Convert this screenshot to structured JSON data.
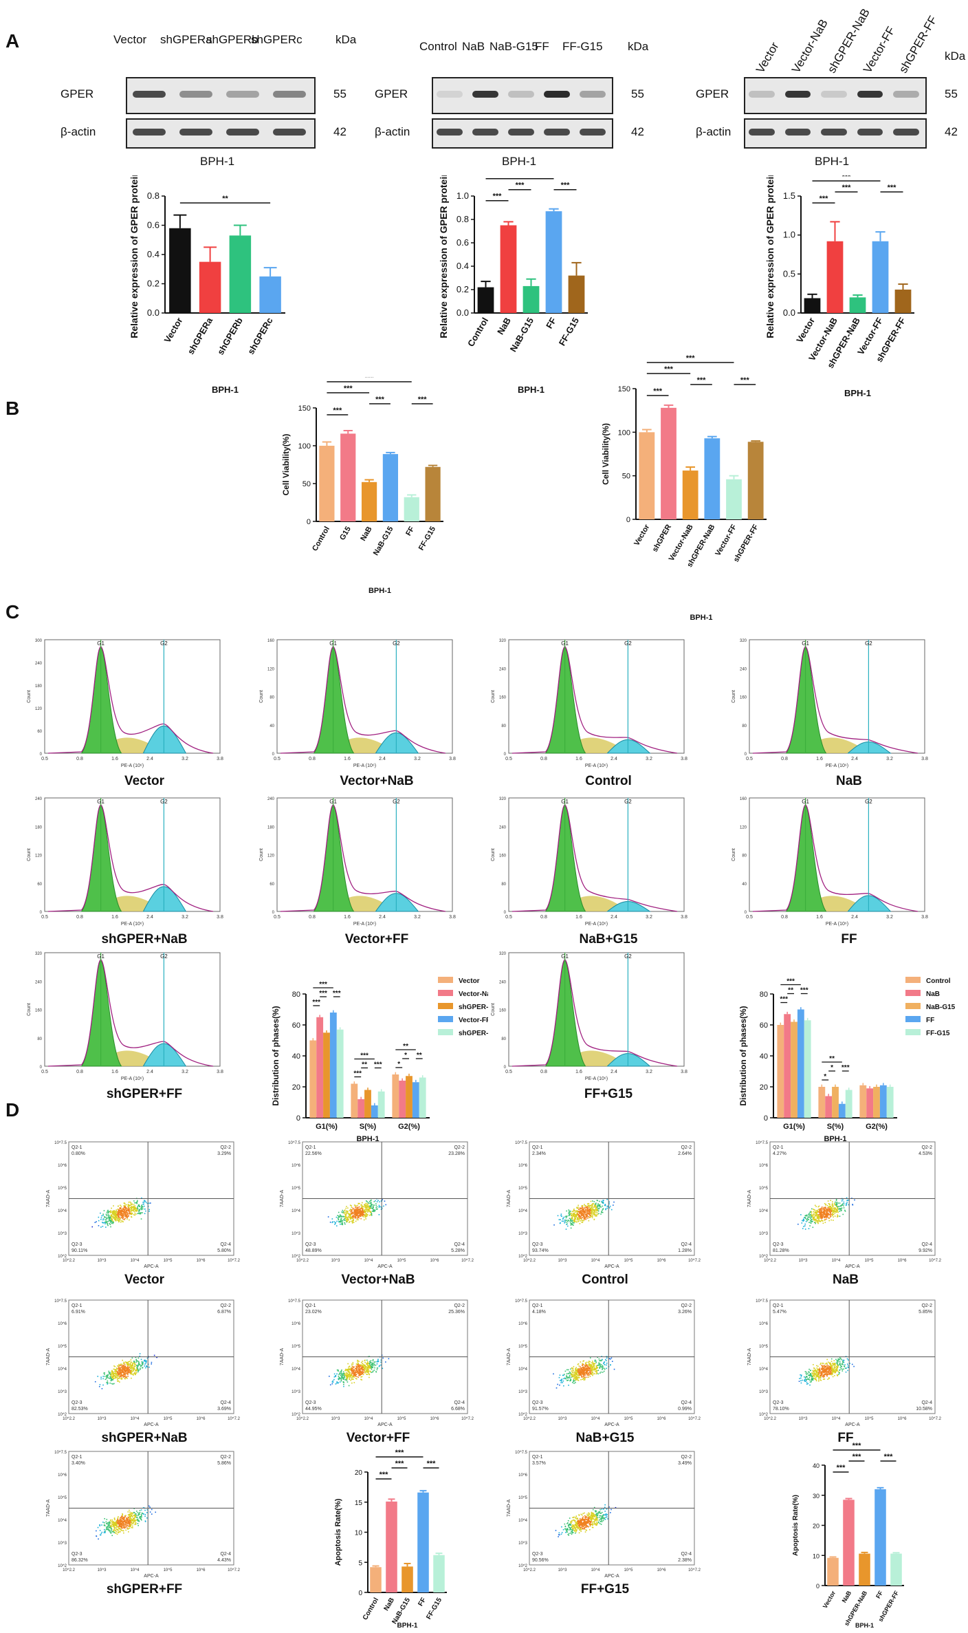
{
  "panels": {
    "A": "A",
    "B": "B",
    "C": "C",
    "D": "D"
  },
  "blots": [
    {
      "lanes": [
        "Vector",
        "shGPERa",
        "shGPERb",
        "shGPERc"
      ],
      "kda": "kDa",
      "proteins": [
        "GPER",
        "β-actin"
      ],
      "kd_values": [
        "55",
        "42"
      ],
      "cell": "BPH-1",
      "gper": [
        0.8,
        0.45,
        0.35,
        0.5
      ],
      "actin": [
        0.8,
        0.8,
        0.8,
        0.8
      ]
    },
    {
      "lanes": [
        "Control",
        "NaB",
        "NaB-G15",
        "FF",
        "FF-G15"
      ],
      "kda": "kDa",
      "proteins": [
        "GPER",
        "β-actin"
      ],
      "kd_values": [
        "55",
        "42"
      ],
      "cell": "BPH-1",
      "gper": [
        0.1,
        0.9,
        0.2,
        0.95,
        0.35
      ],
      "actin": [
        0.8,
        0.8,
        0.8,
        0.8,
        0.8
      ]
    },
    {
      "lanes": [
        "Vector",
        "Vector-NaB",
        "shGPER-NaB",
        "Vector-FF",
        "shGPER-FF"
      ],
      "kda": "kDa",
      "proteins": [
        "GPER",
        "β-actin"
      ],
      "kd_values": [
        "55",
        "42"
      ],
      "cell": "BPH-1",
      "gper": [
        0.2,
        0.9,
        0.15,
        0.9,
        0.3
      ],
      "actin": [
        0.8,
        0.8,
        0.8,
        0.8,
        0.8
      ]
    }
  ],
  "chart_data": [
    {
      "id": "A1",
      "type": "bar",
      "ylabel": "Relative expression of GPER protein",
      "xlabel": "BPH-1",
      "categories": [
        "Vector",
        "shGPERa",
        "shGPERb",
        "shGPERc"
      ],
      "values": [
        0.58,
        0.35,
        0.53,
        0.25
      ],
      "errors": [
        0.09,
        0.1,
        0.07,
        0.06
      ],
      "colors": [
        "#111111",
        "#f04040",
        "#2ec27e",
        "#5aa6f0"
      ],
      "ylim": [
        0,
        0.8
      ],
      "yticks": [
        "0.0",
        "0.2",
        "0.4",
        "0.6",
        "0.8"
      ],
      "sig": [
        {
          "from": 0,
          "to": 3,
          "level": 0,
          "label": "**"
        }
      ]
    },
    {
      "id": "A2",
      "type": "bar",
      "ylabel": "Relative expression of GPER protein",
      "xlabel": "BPH-1",
      "categories": [
        "Control",
        "NaB",
        "NaB-G15",
        "FF",
        "FF-G15"
      ],
      "values": [
        0.22,
        0.75,
        0.23,
        0.87,
        0.32
      ],
      "errors": [
        0.05,
        0.03,
        0.06,
        0.02,
        0.11
      ],
      "colors": [
        "#111111",
        "#f04040",
        "#2ec27e",
        "#5aa6f0",
        "#a0661c"
      ],
      "ylim": [
        0,
        1.0
      ],
      "yticks": [
        "0.0",
        "0.2",
        "0.4",
        "0.6",
        "0.8",
        "1.0"
      ],
      "sig": [
        {
          "from": 0,
          "to": 1,
          "level": 0,
          "label": "***"
        },
        {
          "from": 1,
          "to": 2,
          "level": 1,
          "label": "***"
        },
        {
          "from": 3,
          "to": 4,
          "level": 1,
          "label": "***"
        },
        {
          "from": 0,
          "to": 3,
          "level": 2,
          "label": "***"
        }
      ]
    },
    {
      "id": "A3",
      "type": "bar",
      "ylabel": "Relative expression of GPER protein",
      "xlabel": "BPH-1",
      "categories": [
        "Vector",
        "Vector-NaB",
        "shGPER-NaB",
        "Vector-FF",
        "shGPER-FF"
      ],
      "values": [
        0.19,
        0.92,
        0.2,
        0.92,
        0.3
      ],
      "errors": [
        0.05,
        0.25,
        0.03,
        0.12,
        0.07
      ],
      "colors": [
        "#111111",
        "#f04040",
        "#2ec27e",
        "#5aa6f0",
        "#a0661c"
      ],
      "ylim": [
        0,
        1.5
      ],
      "yticks": [
        "0.0",
        "0.5",
        "1.0",
        "1.5"
      ],
      "sig": [
        {
          "from": 0,
          "to": 1,
          "level": 0,
          "label": "***"
        },
        {
          "from": 1,
          "to": 2,
          "level": 1,
          "label": "***"
        },
        {
          "from": 3,
          "to": 4,
          "level": 1,
          "label": "***"
        },
        {
          "from": 0,
          "to": 3,
          "level": 2,
          "label": "***"
        }
      ]
    },
    {
      "id": "B1",
      "type": "bar",
      "ylabel": "Cell Viability(%)",
      "xlabel": "BPH-1",
      "categories": [
        "Control",
        "G15",
        "NaB",
        "NaB-G15",
        "FF",
        "FF-G15"
      ],
      "values": [
        100,
        116,
        52,
        89,
        32,
        72
      ],
      "errors": [
        5,
        4,
        3,
        2,
        3,
        2
      ],
      "colors": [
        "#f4b07a",
        "#f27a88",
        "#e8962c",
        "#5aa6f0",
        "#b8f0d8",
        "#b8853a"
      ],
      "ylim": [
        0,
        150
      ],
      "yticks": [
        "0",
        "50",
        "100",
        "150"
      ],
      "sig": [
        {
          "from": 0,
          "to": 1,
          "level": 0,
          "label": "***"
        },
        {
          "from": 2,
          "to": 3,
          "level": 1,
          "label": "***"
        },
        {
          "from": 4,
          "to": 5,
          "level": 1,
          "label": "***"
        },
        {
          "from": 0,
          "to": 2,
          "level": 2,
          "label": "***"
        },
        {
          "from": 0,
          "to": 4,
          "level": 3,
          "label": "***"
        }
      ]
    },
    {
      "id": "B2",
      "type": "bar",
      "ylabel": "Cell Viability(%)",
      "xlabel": "BPH-1",
      "categories": [
        "Vector",
        "shGPER",
        "Vector-NaB",
        "shGPER-NaB",
        "Vector-FF",
        "shGPER-FF"
      ],
      "values": [
        100,
        128,
        56,
        93,
        46,
        89
      ],
      "errors": [
        3,
        3,
        4,
        2,
        4,
        1
      ],
      "colors": [
        "#f4b07a",
        "#f27a88",
        "#e8962c",
        "#5aa6f0",
        "#b8f0d8",
        "#b8853a"
      ],
      "ylim": [
        0,
        150
      ],
      "yticks": [
        "0",
        "50",
        "100",
        "150"
      ],
      "sig": [
        {
          "from": 0,
          "to": 1,
          "level": 0,
          "label": "***"
        },
        {
          "from": 2,
          "to": 3,
          "level": 1,
          "label": "***"
        },
        {
          "from": 4,
          "to": 5,
          "level": 1,
          "label": "***"
        },
        {
          "from": 0,
          "to": 2,
          "level": 2,
          "label": "***"
        },
        {
          "from": 0,
          "to": 4,
          "level": 3,
          "label": "***"
        }
      ]
    },
    {
      "id": "C1",
      "type": "grouped-bar",
      "ylabel": "Distribution of phases(%)",
      "xlabel": "BPH-1",
      "groups": [
        "G1(%)",
        "S(%)",
        "G2(%)"
      ],
      "series": [
        {
          "name": "Vector",
          "color": "#f4b07a",
          "values": [
            50,
            22,
            28
          ]
        },
        {
          "name": "Vector-NaB",
          "color": "#f27a88",
          "values": [
            65,
            12,
            24
          ]
        },
        {
          "name": "shGPER-NaB",
          "color": "#e8962c",
          "values": [
            55,
            18,
            27
          ]
        },
        {
          "name": "Vector-FF",
          "color": "#5aa6f0",
          "values": [
            68,
            8,
            23
          ]
        },
        {
          "name": "shGPER-FF",
          "color": "#b8f0d8",
          "values": [
            57,
            17,
            26
          ]
        }
      ],
      "ylim": [
        0,
        80
      ],
      "yticks": [
        "0",
        "20",
        "40",
        "60",
        "80"
      ],
      "sig": [
        {
          "group": 0,
          "from": 0,
          "to": 1,
          "level": 0,
          "label": "***"
        },
        {
          "group": 0,
          "from": 1,
          "to": 2,
          "level": 1,
          "label": "***"
        },
        {
          "group": 0,
          "from": 3,
          "to": 4,
          "level": 1,
          "label": "***"
        },
        {
          "group": 0,
          "from": 0,
          "to": 3,
          "level": 2,
          "label": "***"
        },
        {
          "group": 1,
          "from": 0,
          "to": 1,
          "level": 0,
          "label": "***"
        },
        {
          "group": 1,
          "from": 1,
          "to": 2,
          "level": 1,
          "label": "**"
        },
        {
          "group": 1,
          "from": 3,
          "to": 4,
          "level": 1,
          "label": "***"
        },
        {
          "group": 1,
          "from": 0,
          "to": 3,
          "level": 2,
          "label": "***"
        },
        {
          "group": 2,
          "from": 0,
          "to": 1,
          "level": 0,
          "label": "*"
        },
        {
          "group": 2,
          "from": 1,
          "to": 2,
          "level": 1,
          "label": "*"
        },
        {
          "group": 2,
          "from": 3,
          "to": 4,
          "level": 1,
          "label": "**"
        },
        {
          "group": 2,
          "from": 0,
          "to": 3,
          "level": 2,
          "label": "**"
        }
      ]
    },
    {
      "id": "C2",
      "type": "grouped-bar",
      "ylabel": "Distribution of phases(%)",
      "xlabel": "BPH-1",
      "groups": [
        "G1(%)",
        "S(%)",
        "G2(%)"
      ],
      "series": [
        {
          "name": "Control",
          "color": "#f4b07a",
          "values": [
            60,
            20,
            21
          ]
        },
        {
          "name": "NaB",
          "color": "#f27a88",
          "values": [
            67,
            14,
            19
          ]
        },
        {
          "name": "NaB-G15",
          "color": "#f0b060",
          "values": [
            62,
            20,
            20
          ]
        },
        {
          "name": "FF",
          "color": "#5aa6f0",
          "values": [
            70,
            9,
            21
          ]
        },
        {
          "name": "FF-G15",
          "color": "#b8f0d8",
          "values": [
            63,
            18,
            20
          ]
        }
      ],
      "ylim": [
        0,
        80
      ],
      "yticks": [
        "0",
        "20",
        "40",
        "60",
        "80"
      ],
      "sig": [
        {
          "group": 0,
          "from": 0,
          "to": 1,
          "level": 0,
          "label": "***"
        },
        {
          "group": 0,
          "from": 1,
          "to": 2,
          "level": 1,
          "label": "**"
        },
        {
          "group": 0,
          "from": 3,
          "to": 4,
          "level": 1,
          "label": "***"
        },
        {
          "group": 0,
          "from": 0,
          "to": 3,
          "level": 2,
          "label": "***"
        },
        {
          "group": 1,
          "from": 0,
          "to": 1,
          "level": 0,
          "label": "*"
        },
        {
          "group": 1,
          "from": 1,
          "to": 2,
          "level": 1,
          "label": "*"
        },
        {
          "group": 1,
          "from": 3,
          "to": 4,
          "level": 1,
          "label": "***"
        },
        {
          "group": 1,
          "from": 0,
          "to": 3,
          "level": 2,
          "label": "**"
        }
      ]
    },
    {
      "id": "D1",
      "type": "bar",
      "ylabel": "Apoptosis Rate(%)",
      "xlabel": "BPH-1",
      "categories": [
        "Control",
        "NaB",
        "NaB-G15",
        "FF",
        "FF-G15"
      ],
      "values": [
        4.2,
        15.1,
        4.3,
        16.6,
        6.2
      ],
      "errors": [
        0.2,
        0.4,
        0.5,
        0.3,
        0.3
      ],
      "colors": [
        "#f4b07a",
        "#f27a88",
        "#e8962c",
        "#5aa6f0",
        "#b8f0d8"
      ],
      "ylim": [
        0,
        20
      ],
      "yticks": [
        "0",
        "5",
        "10",
        "15",
        "20"
      ],
      "sig": [
        {
          "from": 0,
          "to": 1,
          "level": 0,
          "label": "***"
        },
        {
          "from": 1,
          "to": 2,
          "level": 1,
          "label": "***"
        },
        {
          "from": 3,
          "to": 4,
          "level": 1,
          "label": "***"
        },
        {
          "from": 0,
          "to": 3,
          "level": 2,
          "label": "***"
        }
      ]
    },
    {
      "id": "D2",
      "type": "bar",
      "ylabel": "Apoptosis Rate(%)",
      "xlabel": "BPH-1",
      "categories": [
        "Vector",
        "NaB",
        "shGPER-NaB",
        "FF",
        "shGPER-FF"
      ],
      "values": [
        9.2,
        28.5,
        10.6,
        32.0,
        10.6
      ],
      "errors": [
        0.3,
        0.4,
        0.4,
        0.5,
        0.3
      ],
      "colors": [
        "#f4b07a",
        "#f27a88",
        "#e8962c",
        "#5aa6f0",
        "#b8f0d8"
      ],
      "ylim": [
        0,
        40
      ],
      "yticks": [
        "0",
        "10",
        "20",
        "30",
        "40"
      ],
      "sig": [
        {
          "from": 0,
          "to": 1,
          "level": 0,
          "label": "***"
        },
        {
          "from": 1,
          "to": 2,
          "level": 1,
          "label": "***"
        },
        {
          "from": 3,
          "to": 4,
          "level": 1,
          "label": "***"
        },
        {
          "from": 0,
          "to": 3,
          "level": 2,
          "label": "***"
        }
      ]
    }
  ],
  "histograms": {
    "peak_labels": [
      "G1",
      "G2"
    ],
    "xlabel": "PE-A (10⁶)",
    "ylabel": "Count",
    "xticks": [
      "0.5",
      "0.8",
      "1.6",
      "2.4",
      "3.2",
      "3.8"
    ],
    "items": [
      {
        "caption": "Vector",
        "yticks": [
          "0",
          "60",
          "120",
          "180",
          "240",
          "300"
        ],
        "g2": 0.6
      },
      {
        "caption": "Vector+NaB",
        "yticks": [
          "0",
          "40",
          "80",
          "120",
          "160"
        ],
        "g2": 0.45
      },
      {
        "caption": "Control",
        "yticks": [
          "0",
          "80",
          "160",
          "240",
          "320"
        ],
        "g2": 0.3
      },
      {
        "caption": "NaB",
        "yticks": [
          "0",
          "80",
          "160",
          "240",
          "320"
        ],
        "g2": 0.25
      },
      {
        "caption": "shGPER+NaB",
        "yticks": [
          "0",
          "60",
          "120",
          "180",
          "240"
        ],
        "g2": 0.55
      },
      {
        "caption": "Vector+FF",
        "yticks": [
          "0",
          "60",
          "120",
          "180",
          "240"
        ],
        "g2": 0.4
      },
      {
        "caption": "NaB+G15",
        "yticks": [
          "0",
          "80",
          "160",
          "240",
          "320"
        ],
        "g2": 0.22
      },
      {
        "caption": "FF",
        "yticks": [
          "0",
          "40",
          "80",
          "120",
          "160"
        ],
        "g2": 0.35
      },
      {
        "caption": "shGPER+FF",
        "yticks": [
          "0",
          "80",
          "160",
          "240",
          "320"
        ],
        "g2": 0.5
      },
      {
        "caption": "FF+G15",
        "yticks": [
          "0",
          "80",
          "160",
          "240",
          "320"
        ],
        "g2": 0.28
      }
    ]
  },
  "scatters": {
    "xlabel": "APC-A",
    "ylabel": "7AAD-A",
    "xticks": [
      "10^2.2",
      "10^3",
      "10^4",
      "10^5",
      "10^6",
      "10^7.2"
    ],
    "yticks": [
      "10^2",
      "10^3",
      "10^4",
      "10^5",
      "10^6",
      "10^7.5"
    ],
    "items": [
      {
        "caption": "Vector",
        "q1": "Q2-1\n0.80%",
        "q2": "Q2-2\n3.29%",
        "q3": "Q2-3\n90.11%",
        "q4": "Q2-4\n5.80%"
      },
      {
        "caption": "Vector+NaB",
        "q1": "Q2-1\n22.56%",
        "q2": "Q2-2\n23.28%",
        "q3": "Q2-3\n48.89%",
        "q4": "Q2-4\n5.28%"
      },
      {
        "caption": "Control",
        "q1": "Q2-1\n2.34%",
        "q2": "Q2-2\n2.64%",
        "q3": "Q2-3\n93.74%",
        "q4": "Q2-4\n1.28%"
      },
      {
        "caption": "NaB",
        "q1": "Q2-1\n4.27%",
        "q2": "Q2-2\n4.53%",
        "q3": "Q2-3\n81.28%",
        "q4": "Q2-4\n9.92%"
      },
      {
        "caption": "shGPER+NaB",
        "q1": "Q2-1\n6.91%",
        "q2": "Q2-2\n6.87%",
        "q3": "Q2-3\n82.53%",
        "q4": "Q2-4\n3.69%"
      },
      {
        "caption": "Vector+FF",
        "q1": "Q2-1\n23.02%",
        "q2": "Q2-2\n25.36%",
        "q3": "Q2-3\n44.95%",
        "q4": "Q2-4\n6.68%"
      },
      {
        "caption": "NaB+G15",
        "q1": "Q2-1\n4.18%",
        "q2": "Q2-2\n3.26%",
        "q3": "Q2-3\n91.57%",
        "q4": "Q2-4\n0.99%"
      },
      {
        "caption": "FF",
        "q1": "Q2-1\n5.47%",
        "q2": "Q2-2\n5.85%",
        "q3": "Q2-3\n78.10%",
        "q4": "Q2-4\n10.58%"
      },
      {
        "caption": "shGPER+FF",
        "q1": "Q2-1\n3.40%",
        "q2": "Q2-2\n5.86%",
        "q3": "Q2-3\n86.32%",
        "q4": "Q2-4\n4.43%"
      },
      {
        "caption": "FF+G15",
        "q1": "Q2-1\n3.57%",
        "q2": "Q2-2\n3.49%",
        "q3": "Q2-3\n90.56%",
        "q4": "Q2-4\n2.38%"
      }
    ]
  }
}
